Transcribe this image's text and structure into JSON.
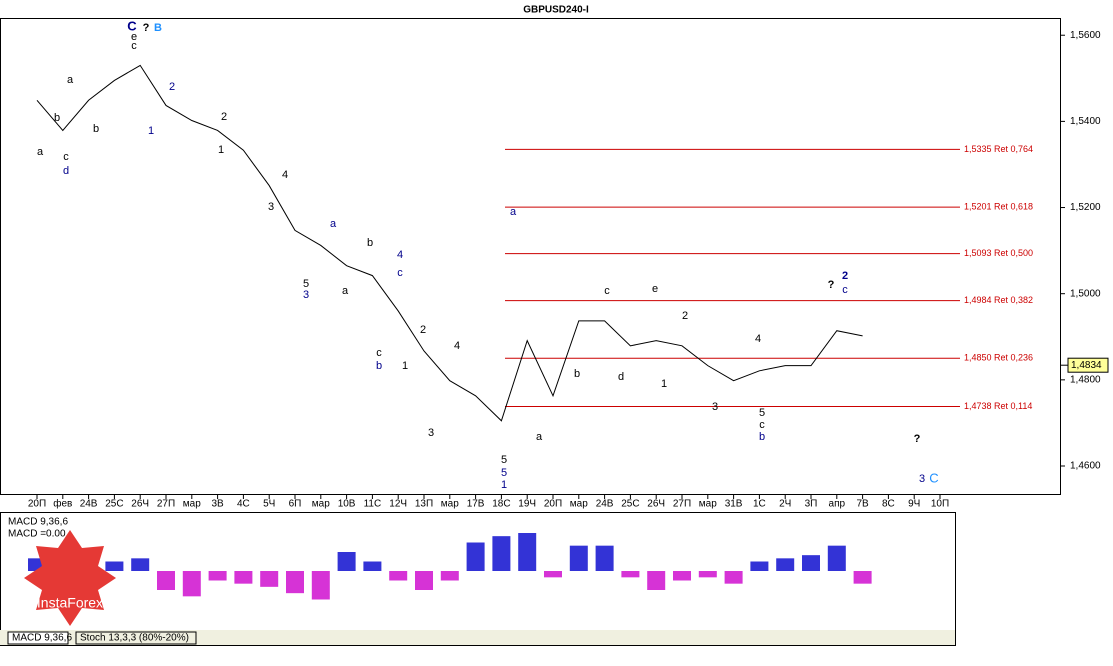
{
  "chart_data": [
    {
      "type": "line",
      "title": "GBPUSD240-I",
      "color": "#000000",
      "categories": [
        "20П",
        "фев",
        "24В",
        "25С",
        "26Ч",
        "27П",
        "мар",
        "3В",
        "4С",
        "5Ч",
        "6П",
        "мар",
        "10В",
        "11С",
        "12Ч",
        "13П",
        "мар",
        "17В",
        "18С",
        "19Ч",
        "20П",
        "мар",
        "24В",
        "25С",
        "26Ч",
        "27П",
        "мар",
        "31В",
        "1С",
        "2Ч",
        "3П",
        "апр",
        "7В",
        "8С",
        "9Ч",
        "10П"
      ],
      "series": [
        {
          "name": "GBPUSD240-I",
          "color": "#000000",
          "values": [
            1.5449,
            1.5379,
            1.5449,
            1.5495,
            1.553,
            1.5437,
            1.5402,
            1.5379,
            1.5333,
            1.5251,
            1.5147,
            1.5112,
            1.5065,
            1.5042,
            1.496,
            1.4867,
            1.4798,
            1.4763,
            1.4705,
            1.4891,
            1.4763,
            1.4937,
            1.4937,
            1.4879,
            1.4891,
            1.4879,
            1.4833,
            1.4798,
            1.4821,
            1.4833,
            1.4833,
            1.4914,
            1.4902,
            null,
            null,
            null
          ]
        }
      ],
      "ylim": [
        1.4535,
        1.564
      ],
      "yticks": [
        {
          "value": 1.56,
          "label": "1,5600"
        },
        {
          "value": 1.54,
          "label": "1,5400"
        },
        {
          "value": 1.52,
          "label": "1,5200"
        },
        {
          "value": 1.5,
          "label": "1,5000"
        },
        {
          "value": 1.48,
          "label": "1,4800"
        },
        {
          "value": 1.46,
          "label": "1,4600"
        }
      ],
      "current_price": {
        "value": 1.4834,
        "label": "1,4834"
      },
      "levels": [
        {
          "value": 1.5335,
          "label": "1,5335 Ret 0,764"
        },
        {
          "value": 1.5201,
          "label": "1,5201 Ret 0,618"
        },
        {
          "value": 1.5093,
          "label": "1,5093 Ret 0,500"
        },
        {
          "value": 1.4984,
          "label": "1,4984 Ret 0,382"
        },
        {
          "value": 1.485,
          "label": "1,4850 Ret 0,236"
        },
        {
          "value": 1.4738,
          "label": "1,4738 Ret 0,114"
        }
      ],
      "level_color": "#cc0000",
      "wave_labels": [
        "C",
        "e",
        "c",
        "?",
        "B",
        "a",
        "b",
        "c",
        "d",
        "a",
        "b",
        "1",
        "2",
        "1",
        "2",
        "3",
        "4",
        "a",
        "5",
        "3",
        "b",
        "a",
        "4",
        "c",
        "c",
        "b",
        "2",
        "1",
        "4",
        "3",
        "5",
        "5",
        "1",
        "a",
        "a",
        "b",
        "c",
        "e",
        "d",
        "2",
        "1",
        "4",
        "3",
        "5",
        "c",
        "b",
        "?",
        "2",
        "c",
        "?",
        "3",
        "C"
      ]
    },
    {
      "type": "bar",
      "title": "MACD 9,36,6",
      "subtitle": "MACD =0.00",
      "pos_color": "#0000cc",
      "neg_color": "#cc00cc",
      "values": [
        0.4,
        0.5,
        0.3,
        0.3,
        0.4,
        -0.6,
        -0.8,
        -0.3,
        -0.4,
        -0.5,
        -0.7,
        -0.9,
        0.6,
        0.3,
        -0.3,
        -0.6,
        -0.3,
        0.9,
        1.1,
        1.2,
        -0.2,
        0.8,
        0.8,
        -0.2,
        -0.6,
        -0.3,
        -0.2,
        -0.4,
        0.3,
        0.4,
        0.5,
        0.8,
        -0.4,
        null,
        null,
        null
      ],
      "ylim": [
        -1.8,
        1.8
      ],
      "tabs": [
        "MACD 9,36,6",
        "Stoch 13,3,3 (80%-20%)"
      ],
      "logo": "InstaForex"
    }
  ]
}
